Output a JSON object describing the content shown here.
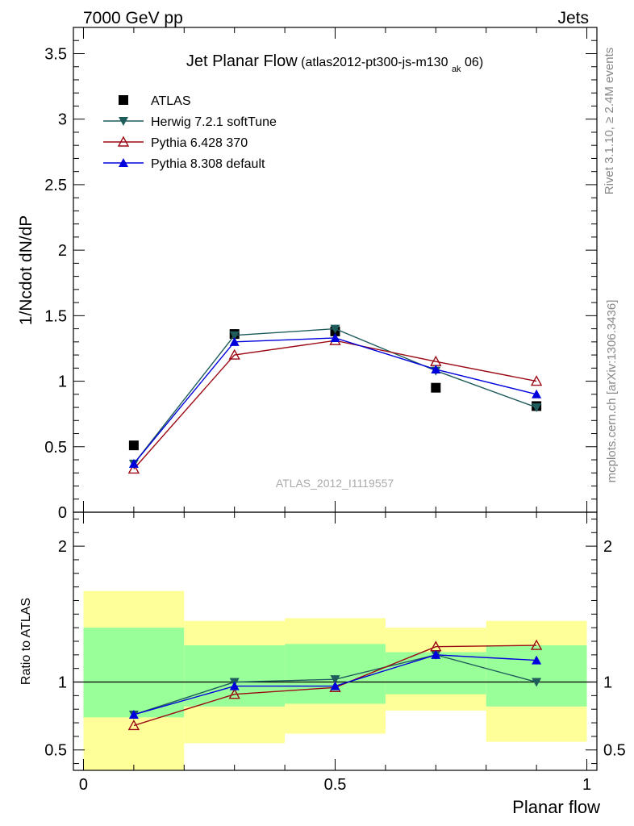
{
  "header": {
    "left": "7000 GeV pp",
    "right": "Jets"
  },
  "side_text": {
    "rivet": "Rivet 3.1.10, ≥ 2.4M events",
    "mcplots": "mcplots.cern.ch [arXiv:1306.3436]"
  },
  "chart_data": [
    {
      "type": "line",
      "title": "Jet Planar Flow",
      "title_detail": "(atlas2012-pt300-js-m130",
      "title_sub": "ak",
      "title_end": "06)",
      "watermark": "ATLAS_2012_I1119557",
      "ylabel": "1/Ncdot dN/dP",
      "xlim": [
        -0.02,
        1.02
      ],
      "ylim": [
        0,
        3.7
      ],
      "yticks": [
        0,
        0.5,
        1,
        1.5,
        2,
        2.5,
        3,
        3.5
      ],
      "ytick_labels": [
        "0",
        "0.5",
        "1",
        "1.5",
        "2",
        "2.5",
        "3",
        "3.5"
      ],
      "legend_position": "top-left",
      "x": [
        0.1,
        0.3,
        0.5,
        0.7,
        0.9
      ],
      "series": [
        {
          "name": "ATLAS",
          "color": "#000000",
          "marker": "square",
          "line": false,
          "values": [
            0.51,
            1.36,
            1.38,
            0.95,
            0.81
          ]
        },
        {
          "name": "Herwig 7.2.1 softTune",
          "color": "#1f5c5c",
          "marker": "triangle-down",
          "line": true,
          "values": [
            0.37,
            1.35,
            1.4,
            1.08,
            0.8
          ]
        },
        {
          "name": "Pythia 6.428 370",
          "color": "#9b0a14",
          "marker": "triangle-up-open",
          "line": true,
          "values": [
            0.33,
            1.2,
            1.31,
            1.15,
            1.0
          ]
        },
        {
          "name": "Pythia 8.308 default",
          "color": "#0000dd",
          "marker": "triangle-up",
          "line": true,
          "values": [
            0.37,
            1.3,
            1.33,
            1.09,
            0.9
          ]
        }
      ]
    },
    {
      "type": "line",
      "ylabel": "Ratio to ATLAS",
      "xlabel": "Planar flow",
      "xlim": [
        -0.02,
        1.02
      ],
      "ylim": [
        0.35,
        2.25
      ],
      "yticks": [
        0.5,
        1,
        2
      ],
      "ytick_labels": [
        "0.5",
        "1",
        "2"
      ],
      "xticks": [
        0,
        0.5,
        1
      ],
      "xtick_labels": [
        "0",
        "0.5",
        "1"
      ],
      "bands": [
        {
          "x0": 0.0,
          "x1": 0.2,
          "yellow": [
            0.35,
            1.67
          ],
          "green": [
            0.74,
            1.4
          ]
        },
        {
          "x0": 0.2,
          "x1": 0.4,
          "yellow": [
            0.55,
            1.45
          ],
          "green": [
            0.82,
            1.27
          ]
        },
        {
          "x0": 0.4,
          "x1": 0.6,
          "yellow": [
            0.62,
            1.47
          ],
          "green": [
            0.84,
            1.28
          ]
        },
        {
          "x0": 0.6,
          "x1": 0.8,
          "yellow": [
            0.79,
            1.4
          ],
          "green": [
            0.91,
            1.22
          ]
        },
        {
          "x0": 0.8,
          "x1": 1.0,
          "yellow": [
            0.56,
            1.45
          ],
          "green": [
            0.82,
            1.27
          ]
        }
      ],
      "x": [
        0.1,
        0.3,
        0.5,
        0.7,
        0.9
      ],
      "series": [
        {
          "name": "Herwig 7.2.1 softTune",
          "color": "#1f5c5c",
          "marker": "triangle-down",
          "values": [
            0.76,
            1.0,
            1.02,
            1.2,
            1.0
          ]
        },
        {
          "name": "Pythia 6.428 370",
          "color": "#9b0a14",
          "marker": "triangle-up-open",
          "values": [
            0.68,
            0.91,
            0.96,
            1.26,
            1.27
          ]
        },
        {
          "name": "Pythia 8.308 default",
          "color": "#0000dd",
          "marker": "triangle-up",
          "values": [
            0.76,
            0.97,
            0.97,
            1.2,
            1.16
          ]
        }
      ]
    }
  ]
}
